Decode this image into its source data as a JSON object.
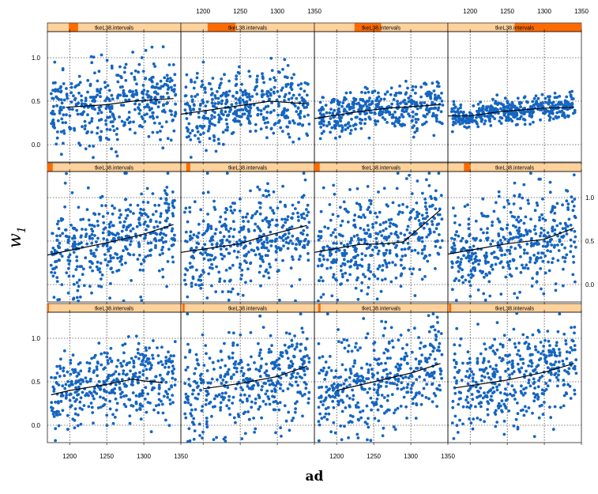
{
  "chart_data": {
    "type": "scatter",
    "layout": {
      "columns": 4,
      "rows": 3,
      "row_order": "bottom-to-top"
    },
    "xlabel": "ad",
    "ylabel_symbol": "w",
    "ylabel_subscript": "1",
    "xlim": [
      1170,
      1350
    ],
    "ylim": [
      -0.2,
      1.3
    ],
    "x_ticks": [
      1200,
      1250,
      1300,
      1350
    ],
    "x_tick_labels": [
      "1200",
      "1250",
      "1300",
      "1350"
    ],
    "y_ticks": [
      0.0,
      0.5,
      1.0
    ],
    "y_tick_labels": [
      "0.0",
      "0.5",
      "1.0"
    ],
    "grid": true,
    "grid_style": "dotted",
    "point_color": "#1565c0",
    "line_color": "#000000",
    "strip_fill": "#ffd29b",
    "strip_marker_color": "#ff6a00",
    "strip_label": "tkeL38.intervals",
    "panels": [
      {
        "index": 1,
        "interval": [
          0.0,
          0.012
        ],
        "spread": 0.22,
        "smooth_x": [
          1175,
          1200,
          1250,
          1285,
          1300,
          1325
        ],
        "smooth_y": [
          0.35,
          0.4,
          0.47,
          0.53,
          0.51,
          0.49
        ]
      },
      {
        "index": 2,
        "interval": [
          0.012,
          0.028
        ],
        "spread": 0.27,
        "smooth_x": [
          1200,
          1250,
          1300,
          1340
        ],
        "smooth_y": [
          0.42,
          0.48,
          0.56,
          0.68
        ]
      },
      {
        "index": 3,
        "interval": [
          0.028,
          0.046
        ],
        "spread": 0.27,
        "smooth_x": [
          1200,
          1250,
          1300,
          1340
        ],
        "smooth_y": [
          0.4,
          0.5,
          0.6,
          0.71
        ]
      },
      {
        "index": 4,
        "interval": [
          0.008,
          0.025
        ],
        "spread": 0.27,
        "smooth_x": [
          1180,
          1250,
          1300,
          1340
        ],
        "smooth_y": [
          0.43,
          0.52,
          0.61,
          0.71
        ]
      },
      {
        "index": 5,
        "interval": [
          0.0,
          0.04
        ],
        "spread": 0.27,
        "smooth_x": [
          1170,
          1250,
          1300,
          1340
        ],
        "smooth_y": [
          0.34,
          0.48,
          0.58,
          0.69
        ]
      },
      {
        "index": 6,
        "interval": [
          0.04,
          0.07
        ],
        "spread": 0.27,
        "smooth_x": [
          1170,
          1250,
          1280,
          1340
        ],
        "smooth_y": [
          0.37,
          0.47,
          0.55,
          0.68
        ]
      },
      {
        "index": 7,
        "interval": [
          0.0,
          0.04
        ],
        "spread": 0.27,
        "smooth_x": [
          1170,
          1230,
          1265,
          1290,
          1340
        ],
        "smooth_y": [
          0.37,
          0.46,
          0.47,
          0.49,
          0.86
        ]
      },
      {
        "index": 8,
        "interval": [
          0.12,
          0.17
        ],
        "spread": 0.27,
        "smooth_x": [
          1170,
          1250,
          1300,
          1340
        ],
        "smooth_y": [
          0.35,
          0.47,
          0.52,
          0.65
        ]
      },
      {
        "index": 9,
        "interval": [
          0.16,
          0.23
        ],
        "spread": 0.22,
        "smooth_x": [
          1195,
          1250,
          1285,
          1340
        ],
        "smooth_y": [
          0.43,
          0.46,
          0.5,
          0.53
        ]
      },
      {
        "index": 10,
        "interval": [
          0.2,
          0.41
        ],
        "spread": 0.2,
        "smooth_x": [
          1170,
          1250,
          1290,
          1340
        ],
        "smooth_y": [
          0.35,
          0.45,
          0.5,
          0.47
        ]
      },
      {
        "index": 11,
        "interval": [
          0.3,
          0.5
        ],
        "spread": 0.12,
        "smooth_x": [
          1170,
          1230,
          1270,
          1340
        ],
        "smooth_y": [
          0.3,
          0.38,
          0.42,
          0.46
        ]
      },
      {
        "index": 12,
        "interval": [
          0.5,
          1.0
        ],
        "spread": 0.07,
        "smooth_x": [
          1170,
          1200,
          1240,
          1300,
          1340
        ],
        "smooth_y": [
          0.33,
          0.33,
          0.38,
          0.42,
          0.43
        ]
      }
    ]
  }
}
